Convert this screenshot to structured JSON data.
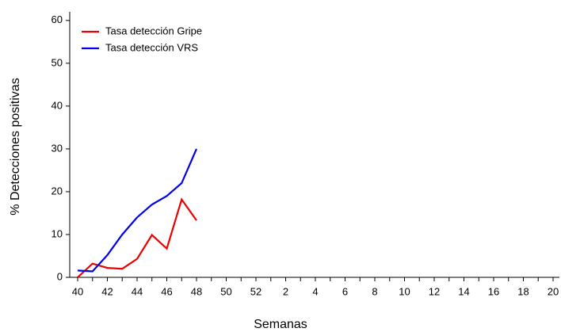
{
  "chart_data": {
    "type": "line",
    "x_label": "Semanas",
    "y_label": "% Detecciones positivas",
    "categories": [
      "40",
      null,
      "42",
      null,
      "44",
      null,
      "46",
      null,
      "48",
      null,
      "50",
      null,
      "52",
      null,
      "2",
      null,
      "4",
      null,
      "6",
      null,
      "8",
      null,
      "10",
      null,
      "12",
      null,
      "14",
      null,
      "16",
      null,
      "18",
      null,
      "20"
    ],
    "series": [
      {
        "name": "Tasa detección Gripe",
        "color": "#ee0000",
        "values": [
          0,
          3.2,
          2.2,
          2.0,
          4.3,
          9.9,
          6.7,
          18.2,
          13.3,
          null,
          null,
          null,
          null,
          null,
          null,
          null,
          null,
          null,
          null,
          null,
          null,
          null,
          null,
          null,
          null,
          null,
          null,
          null,
          null,
          null,
          null,
          null,
          null
        ]
      },
      {
        "name": "Tasa detección VRS",
        "color": "#0000ee",
        "values": [
          1.6,
          1.4,
          5.2,
          10,
          14,
          17,
          19,
          22,
          30,
          null,
          null,
          null,
          null,
          null,
          null,
          null,
          null,
          null,
          null,
          null,
          null,
          null,
          null,
          null,
          null,
          null,
          null,
          null,
          null,
          null,
          null,
          null,
          null
        ]
      }
    ],
    "ylim": [
      0,
      62
    ],
    "yticks": [
      0,
      10,
      20,
      30,
      40,
      50,
      60
    ],
    "legend": "top-left"
  }
}
